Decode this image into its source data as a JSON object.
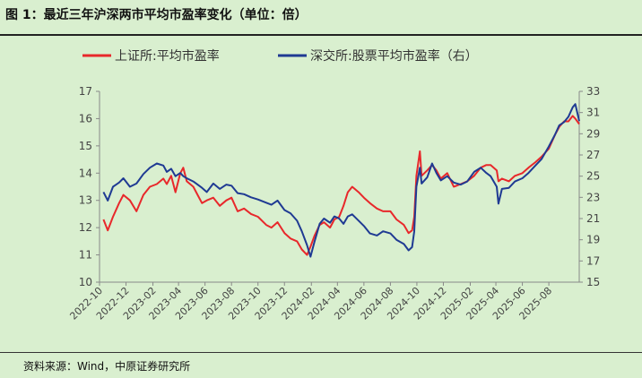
{
  "header": {
    "title": "图 1：最近三年沪深两市平均市盈率变化（单位：倍）"
  },
  "footer": {
    "source": "资料来源：Wind，中原证券研究所"
  },
  "colors": {
    "background": "#d9efcf",
    "sh_series": "#e8282b",
    "sz_series": "#1f3a93",
    "axis": "#888888"
  },
  "chart_data": {
    "type": "line",
    "legend_position": "top",
    "grid": false,
    "left_axis": {
      "range": [
        10,
        17
      ],
      "ticks": [
        "10",
        "11",
        "12",
        "13",
        "14",
        "15",
        "16",
        "17"
      ]
    },
    "right_axis": {
      "range": [
        15,
        33
      ],
      "ticks": [
        "15",
        "17",
        "19",
        "21",
        "23",
        "25",
        "27",
        "29",
        "31",
        "33"
      ]
    },
    "x_range": [
      "2022-10-01",
      "2025-10-10"
    ],
    "x_ticks": [
      "2022-10",
      "2022-12",
      "2023-02",
      "2023-04",
      "2023-06",
      "2023-08",
      "2023-10",
      "2023-12",
      "2024-02",
      "2024-04",
      "2024-06",
      "2024-08",
      "2024-10",
      "2024-12",
      "2025-02",
      "2025-04",
      "2025-06",
      "2025-08"
    ],
    "series": [
      {
        "name": "上证所:平均市盈率",
        "axis": "left",
        "points": [
          [
            "2022-10-10",
            12.3
          ],
          [
            "2022-10-20",
            11.9
          ],
          [
            "2022-11-01",
            12.4
          ],
          [
            "2022-11-15",
            12.9
          ],
          [
            "2022-11-25",
            13.2
          ],
          [
            "2022-12-10",
            13.0
          ],
          [
            "2022-12-25",
            12.6
          ],
          [
            "2023-01-10",
            13.2
          ],
          [
            "2023-01-25",
            13.5
          ],
          [
            "2023-02-10",
            13.6
          ],
          [
            "2023-02-25",
            13.8
          ],
          [
            "2023-03-05",
            13.6
          ],
          [
            "2023-03-15",
            13.9
          ],
          [
            "2023-03-25",
            13.3
          ],
          [
            "2023-04-05",
            14.0
          ],
          [
            "2023-04-12",
            14.2
          ],
          [
            "2023-04-20",
            13.7
          ],
          [
            "2023-05-05",
            13.5
          ],
          [
            "2023-05-15",
            13.2
          ],
          [
            "2023-05-25",
            12.9
          ],
          [
            "2023-06-05",
            13.0
          ],
          [
            "2023-06-20",
            13.1
          ],
          [
            "2023-07-05",
            12.8
          ],
          [
            "2023-07-20",
            13.0
          ],
          [
            "2023-08-01",
            13.1
          ],
          [
            "2023-08-15",
            12.6
          ],
          [
            "2023-08-30",
            12.7
          ],
          [
            "2023-09-15",
            12.5
          ],
          [
            "2023-10-01",
            12.4
          ],
          [
            "2023-10-20",
            12.1
          ],
          [
            "2023-11-01",
            12.0
          ],
          [
            "2023-11-15",
            12.2
          ],
          [
            "2023-12-01",
            11.8
          ],
          [
            "2023-12-15",
            11.6
          ],
          [
            "2023-12-30",
            11.5
          ],
          [
            "2024-01-10",
            11.2
          ],
          [
            "2024-01-22",
            11.0
          ],
          [
            "2024-01-30",
            11.3
          ],
          [
            "2024-02-08",
            11.7
          ],
          [
            "2024-02-20",
            12.1
          ],
          [
            "2024-03-01",
            12.2
          ],
          [
            "2024-03-15",
            12.0
          ],
          [
            "2024-03-25",
            12.3
          ],
          [
            "2024-04-05",
            12.4
          ],
          [
            "2024-04-15",
            12.8
          ],
          [
            "2024-04-25",
            13.3
          ],
          [
            "2024-05-05",
            13.5
          ],
          [
            "2024-05-20",
            13.3
          ],
          [
            "2024-06-01",
            13.1
          ],
          [
            "2024-06-15",
            12.9
          ],
          [
            "2024-07-01",
            12.7
          ],
          [
            "2024-07-15",
            12.6
          ],
          [
            "2024-08-01",
            12.6
          ],
          [
            "2024-08-15",
            12.3
          ],
          [
            "2024-09-01",
            12.1
          ],
          [
            "2024-09-12",
            11.8
          ],
          [
            "2024-09-20",
            11.9
          ],
          [
            "2024-09-25",
            12.4
          ],
          [
            "2024-09-30",
            13.9
          ],
          [
            "2024-10-08",
            14.8
          ],
          [
            "2024-10-12",
            13.9
          ],
          [
            "2024-10-25",
            14.1
          ],
          [
            "2024-11-05",
            14.3
          ],
          [
            "2024-11-15",
            14.1
          ],
          [
            "2024-11-25",
            13.8
          ],
          [
            "2024-12-10",
            14.0
          ],
          [
            "2024-12-25",
            13.5
          ],
          [
            "2025-01-10",
            13.6
          ],
          [
            "2025-01-25",
            13.7
          ],
          [
            "2025-02-10",
            13.9
          ],
          [
            "2025-02-25",
            14.2
          ],
          [
            "2025-03-10",
            14.3
          ],
          [
            "2025-03-20",
            14.3
          ],
          [
            "2025-04-03",
            14.1
          ],
          [
            "2025-04-07",
            13.7
          ],
          [
            "2025-04-15",
            13.8
          ],
          [
            "2025-05-01",
            13.7
          ],
          [
            "2025-05-15",
            13.9
          ],
          [
            "2025-06-01",
            14.0
          ],
          [
            "2025-06-15",
            14.2
          ],
          [
            "2025-07-01",
            14.4
          ],
          [
            "2025-07-15",
            14.6
          ],
          [
            "2025-08-01",
            14.9
          ],
          [
            "2025-08-15",
            15.4
          ],
          [
            "2025-08-25",
            15.7
          ],
          [
            "2025-09-05",
            15.9
          ],
          [
            "2025-09-15",
            15.9
          ],
          [
            "2025-09-25",
            16.1
          ],
          [
            "2025-10-01",
            16.0
          ],
          [
            "2025-10-10",
            15.8
          ]
        ]
      },
      {
        "name": "深交所:股票平均市盈率（右）",
        "axis": "right",
        "points": [
          [
            "2022-10-10",
            23.5
          ],
          [
            "2022-10-20",
            22.7
          ],
          [
            "2022-11-01",
            24.0
          ],
          [
            "2022-11-15",
            24.4
          ],
          [
            "2022-11-25",
            24.8
          ],
          [
            "2022-12-10",
            24.0
          ],
          [
            "2022-12-25",
            24.3
          ],
          [
            "2023-01-10",
            25.2
          ],
          [
            "2023-01-25",
            25.8
          ],
          [
            "2023-02-10",
            26.2
          ],
          [
            "2023-02-25",
            26.0
          ],
          [
            "2023-03-05",
            25.4
          ],
          [
            "2023-03-15",
            25.7
          ],
          [
            "2023-03-25",
            25.0
          ],
          [
            "2023-04-05",
            25.3
          ],
          [
            "2023-04-12",
            25.0
          ],
          [
            "2023-04-20",
            24.8
          ],
          [
            "2023-05-05",
            24.5
          ],
          [
            "2023-05-15",
            24.2
          ],
          [
            "2023-05-25",
            23.9
          ],
          [
            "2023-06-05",
            23.5
          ],
          [
            "2023-06-20",
            24.3
          ],
          [
            "2023-07-05",
            23.8
          ],
          [
            "2023-07-20",
            24.2
          ],
          [
            "2023-08-01",
            24.1
          ],
          [
            "2023-08-15",
            23.4
          ],
          [
            "2023-08-30",
            23.3
          ],
          [
            "2023-09-15",
            23.0
          ],
          [
            "2023-10-01",
            22.8
          ],
          [
            "2023-10-20",
            22.5
          ],
          [
            "2023-11-01",
            22.3
          ],
          [
            "2023-11-15",
            22.7
          ],
          [
            "2023-12-01",
            21.8
          ],
          [
            "2023-12-15",
            21.5
          ],
          [
            "2023-12-30",
            20.8
          ],
          [
            "2024-01-10",
            19.8
          ],
          [
            "2024-01-22",
            18.5
          ],
          [
            "2024-01-30",
            17.4
          ],
          [
            "2024-02-08",
            18.8
          ],
          [
            "2024-02-20",
            20.5
          ],
          [
            "2024-03-01",
            21.0
          ],
          [
            "2024-03-15",
            20.6
          ],
          [
            "2024-03-25",
            21.2
          ],
          [
            "2024-04-05",
            21.0
          ],
          [
            "2024-04-15",
            20.5
          ],
          [
            "2024-04-25",
            21.2
          ],
          [
            "2024-05-05",
            21.4
          ],
          [
            "2024-05-20",
            20.8
          ],
          [
            "2024-06-01",
            20.3
          ],
          [
            "2024-06-15",
            19.6
          ],
          [
            "2024-07-01",
            19.4
          ],
          [
            "2024-07-15",
            19.8
          ],
          [
            "2024-08-01",
            19.6
          ],
          [
            "2024-08-15",
            19.0
          ],
          [
            "2024-09-01",
            18.6
          ],
          [
            "2024-09-12",
            18.0
          ],
          [
            "2024-09-20",
            18.3
          ],
          [
            "2024-09-25",
            19.8
          ],
          [
            "2024-09-30",
            24.0
          ],
          [
            "2024-10-08",
            25.8
          ],
          [
            "2024-10-12",
            24.3
          ],
          [
            "2024-10-25",
            24.9
          ],
          [
            "2024-11-05",
            26.2
          ],
          [
            "2024-11-15",
            25.3
          ],
          [
            "2024-11-25",
            24.6
          ],
          [
            "2024-12-10",
            25.0
          ],
          [
            "2024-12-25",
            24.4
          ],
          [
            "2025-01-10",
            24.2
          ],
          [
            "2025-01-25",
            24.5
          ],
          [
            "2025-02-10",
            25.4
          ],
          [
            "2025-02-25",
            25.8
          ],
          [
            "2025-03-10",
            25.3
          ],
          [
            "2025-03-20",
            25.0
          ],
          [
            "2025-04-03",
            24.0
          ],
          [
            "2025-04-07",
            22.4
          ],
          [
            "2025-04-15",
            23.8
          ],
          [
            "2025-05-01",
            23.9
          ],
          [
            "2025-05-15",
            24.5
          ],
          [
            "2025-06-01",
            24.8
          ],
          [
            "2025-06-15",
            25.3
          ],
          [
            "2025-07-01",
            26.0
          ],
          [
            "2025-07-15",
            26.6
          ],
          [
            "2025-08-01",
            27.8
          ],
          [
            "2025-08-15",
            28.9
          ],
          [
            "2025-08-25",
            29.8
          ],
          [
            "2025-09-05",
            30.1
          ],
          [
            "2025-09-15",
            30.6
          ],
          [
            "2025-09-25",
            31.5
          ],
          [
            "2025-10-01",
            31.8
          ],
          [
            "2025-10-10",
            30.2
          ]
        ]
      }
    ]
  }
}
